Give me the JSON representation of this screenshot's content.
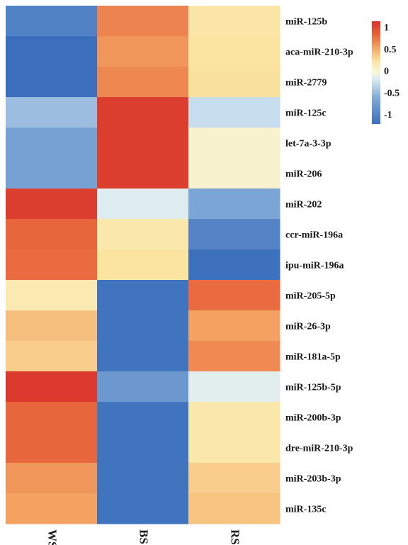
{
  "chart_data": {
    "type": "heatmap",
    "columns": [
      "WS",
      "BS",
      "RS"
    ],
    "rows": [
      "miR-125b",
      "aca-miR-210-3p",
      "miR-2779",
      "miR-125c",
      "let-7a-3-3p",
      "miR-206",
      "miR-202",
      "ccr-miR-196a",
      "ipu-miR-196a",
      "miR-205-5p",
      "miR-26-3p",
      "miR-181a-5p",
      "miR-125b-5p",
      "miR-200b-3p",
      "dre-miR-210-3p",
      "miR-203b-3p",
      "miR-135c"
    ],
    "values": [
      [
        -0.92,
        0.68,
        0.22
      ],
      [
        -1.12,
        0.6,
        0.24
      ],
      [
        -1.12,
        0.66,
        0.26
      ],
      [
        -0.42,
        1.02,
        -0.22
      ],
      [
        -0.62,
        1.02,
        0.06
      ],
      [
        -0.62,
        1.02,
        0.06
      ],
      [
        1.02,
        -0.12,
        -0.58
      ],
      [
        0.8,
        0.2,
        -0.9
      ],
      [
        0.78,
        0.25,
        -1.08
      ],
      [
        0.18,
        -1.05,
        0.78
      ],
      [
        0.42,
        -1.05,
        0.55
      ],
      [
        0.35,
        -1.05,
        0.65
      ],
      [
        1.05,
        -0.7,
        -0.1
      ],
      [
        0.8,
        -1.05,
        0.2
      ],
      [
        0.8,
        -1.05,
        0.2
      ],
      [
        0.6,
        -1.05,
        0.35
      ],
      [
        0.55,
        -1.05,
        0.4
      ]
    ],
    "color_scale": {
      "min": -1.1,
      "max": 1.1,
      "stops": [
        {
          "value": -1.1,
          "color": "#3b6fbd"
        },
        {
          "value": -0.55,
          "color": "#7fa8d6"
        },
        {
          "value": -0.15,
          "color": "#d7e9f3"
        },
        {
          "value": 0.0,
          "color": "#f7f8dc"
        },
        {
          "value": 0.25,
          "color": "#fbe3a0"
        },
        {
          "value": 0.55,
          "color": "#f3a262"
        },
        {
          "value": 0.8,
          "color": "#e8663c"
        },
        {
          "value": 1.1,
          "color": "#d8302a"
        }
      ]
    },
    "legend": {
      "ticks": [
        1,
        0.5,
        0,
        -0.5,
        -1
      ],
      "tick_labels": [
        "1",
        "0.5",
        "0",
        "-0.5",
        "-1"
      ],
      "placement": "top-right"
    },
    "title": "",
    "xlabel": "",
    "ylabel": ""
  }
}
